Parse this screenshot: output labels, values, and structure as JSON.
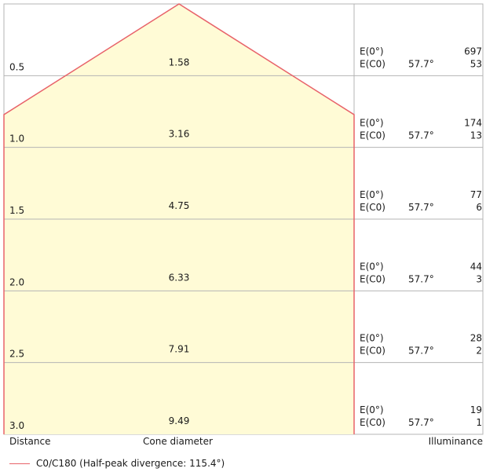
{
  "chart_data": {
    "type": "area",
    "title": "",
    "xlabel": "Cone diameter",
    "ylabel": "Distance",
    "column_labels": {
      "distance": "Distance",
      "cone_diameter": "Cone diameter",
      "illuminance": "Illuminance"
    },
    "ylim": [
      0,
      3.0
    ],
    "rows": [
      {
        "distance": "0.5",
        "diameter": "1.58",
        "e0_label": "E(0°)",
        "ec0_label": "E(C0)",
        "angle": "57.7°",
        "e0": "697",
        "ec0": "53"
      },
      {
        "distance": "1.0",
        "diameter": "3.16",
        "e0_label": "E(0°)",
        "ec0_label": "E(C0)",
        "angle": "57.7°",
        "e0": "174",
        "ec0": "13"
      },
      {
        "distance": "1.5",
        "diameter": "4.75",
        "e0_label": "E(0°)",
        "ec0_label": "E(C0)",
        "angle": "57.7°",
        "e0": "77",
        "ec0": "6"
      },
      {
        "distance": "2.0",
        "diameter": "6.33",
        "e0_label": "E(0°)",
        "ec0_label": "E(C0)",
        "angle": "57.7°",
        "e0": "44",
        "ec0": "3"
      },
      {
        "distance": "2.5",
        "diameter": "7.91",
        "e0_label": "E(0°)",
        "ec0_label": "E(C0)",
        "angle": "57.7°",
        "e0": "28",
        "ec0": "2"
      },
      {
        "distance": "3.0",
        "diameter": "9.49",
        "e0_label": "E(0°)",
        "ec0_label": "E(C0)",
        "angle": "57.7°",
        "e0": "19",
        "ec0": "1"
      }
    ],
    "series": [
      {
        "name": "C0/C180 (Half-peak divergence: 115.4°)",
        "color": "#e8636a",
        "fill": "#fffbd6",
        "half_angle_deg": 57.7
      }
    ],
    "grid": true,
    "legend": "bottom-left"
  }
}
